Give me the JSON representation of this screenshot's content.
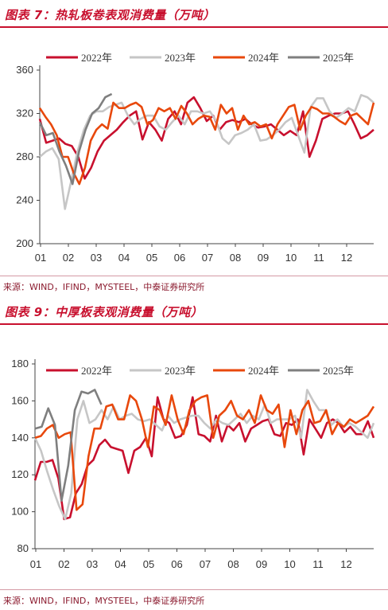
{
  "charts": [
    {
      "title": "图表 7：热轧板卷表观消费量（万吨）",
      "source": "来源：WIND，IFIND，MYSTEEL，中泰证券研究所",
      "chart_data": {
        "type": "line",
        "ylim": [
          200,
          360
        ],
        "yticks": [
          200,
          240,
          280,
          320,
          360
        ],
        "xticks": [
          "01",
          "02",
          "03",
          "04",
          "05",
          "06",
          "07",
          "08",
          "09",
          "10",
          "11",
          "12"
        ],
        "x_range": [
          1,
          52
        ],
        "grid": false,
        "legend_position": "top",
        "colors": {
          "2022": "#c8102e",
          "2023": "#c6c6c6",
          "2024": "#e8480c",
          "2025": "#7f7f7f"
        },
        "series": [
          {
            "name": "2022年",
            "color": "#c8102e",
            "values": [
              315,
              293,
              295,
              297,
              292,
              290,
              280,
              260,
              270,
              285,
              295,
              300,
              305,
              312,
              318,
              322,
              296,
              312,
              305,
              295,
              315,
              322,
              310,
              330,
              335,
              325,
              313,
              318,
              305,
              312,
              314,
              312,
              315,
              310,
              307,
              308,
              310,
              305,
              300,
              304,
              300,
              322,
              280,
              295,
              315,
              318,
              320,
              320,
              322,
              310,
              297,
              300,
              305
            ]
          },
          {
            "name": "2023年",
            "color": "#c6c6c6",
            "values": [
              280,
              285,
              288,
              278,
              232,
              258,
              285,
              305,
              318,
              322,
              322,
              326,
              328,
              330,
              318,
              310,
              315,
              318,
              318,
              308,
              305,
              312,
              318,
              310,
              322,
              322,
              320,
              322,
              313,
              297,
              292,
              300,
              302,
              305,
              310,
              295,
              296,
              300,
              305,
              312,
              316,
              300,
              284,
              326,
              334,
              334,
              322,
              316,
              320,
              325,
              322,
              337,
              335,
              330
            ]
          },
          {
            "name": "2024年",
            "color": "#e8480c",
            "values": [
              325,
              317,
              310,
              300,
              280,
              280,
              265,
              255,
              270,
              295,
              305,
              310,
              306,
              330,
              325,
              325,
              328,
              330,
              326,
              310,
              314,
              325,
              322,
              325,
              315,
              327,
              320,
              310,
              315,
              318,
              317,
              305,
              328,
              320,
              325,
              305,
              318,
              310,
              312,
              308,
              310,
              297,
              310,
              318,
              326,
              328,
              305,
              318,
              326,
              324,
              320,
              320,
              317,
              313,
              310,
              318,
              320,
              315,
              310,
              330
            ]
          },
          {
            "name": "2025年",
            "color": "#7f7f7f",
            "values": [
              312,
              300,
              302,
              285,
              272,
              255,
              285,
              305,
              320,
              325,
              335,
              338
            ]
          }
        ]
      }
    },
    {
      "title": "图表 9：中厚板表观消费量（万吨）",
      "source": "来源：WIND，IFIND，MYSTEEL，中泰证券研究所",
      "chart_data": {
        "type": "line",
        "ylim": [
          80,
          180
        ],
        "yticks": [
          80,
          100,
          120,
          140,
          160,
          180
        ],
        "xticks": [
          "01",
          "02",
          "03",
          "04",
          "05",
          "06",
          "07",
          "08",
          "09",
          "10",
          "11",
          "12"
        ],
        "x_range": [
          1,
          52
        ],
        "grid": false,
        "legend_position": "top",
        "colors": {
          "2022": "#c8102e",
          "2023": "#c6c6c6",
          "2024": "#e8480c",
          "2025": "#7f7f7f"
        },
        "series": [
          {
            "name": "2022年",
            "color": "#c8102e",
            "values": [
              117,
              127,
              127,
              128,
              118,
              96,
              97,
              110,
              115,
              125,
              128,
              136,
              139,
              135,
              134,
              133,
              121,
              133,
              135,
              140,
              130,
              162,
              150,
              148,
              140,
              141,
              147,
              162,
              142,
              141,
              138,
              152,
              138,
              147,
              144,
              148,
              138,
              145,
              147,
              149,
              150,
              142,
              141,
              148,
              147,
              150,
              131,
              150,
              145,
              140,
              148,
              150,
              148,
              143,
              146,
              142,
              142,
              149,
              140
            ]
          },
          {
            "name": "2023年",
            "color": "#c6c6c6",
            "values": [
              140,
              133,
              122,
              112,
              103,
              96,
              110,
              150,
              160,
              148,
              150,
              155,
              150,
              157,
              150,
              152,
              153,
              150,
              149,
              150,
              147,
              144,
              152,
              148,
              150,
              151,
              152,
              152,
              148,
              145,
              150,
              148,
              147,
              150,
              153,
              148,
              152,
              150,
              158,
              148,
              150,
              150,
              150,
              152,
              140,
              166,
              160,
              155,
              155,
              147,
              150,
              146,
              148,
              146,
              143,
              140,
              148
            ]
          },
          {
            "name": "2024年",
            "color": "#e8480c",
            "values": [
              140,
              141,
              145,
              147,
              140,
              142,
              143,
              101,
              104,
              130,
              145,
              145,
              157,
              158,
              150,
              150,
              163,
              160,
              150,
              135,
              157,
              155,
              147,
              163,
              150,
              142,
              155,
              160,
              162,
              163,
              140,
              152,
              155,
              160,
              152,
              150,
              155,
              148,
              163,
              155,
              153,
              158,
              135,
              155,
              142,
              155,
              160,
              148,
              149,
              155,
              142,
              148,
              146,
              150,
              148,
              150,
              152,
              157
            ]
          },
          {
            "name": "2025年",
            "color": "#7f7f7f",
            "values": [
              145,
              146,
              156,
              147,
              106,
              125,
              155,
              165,
              164,
              166,
              158
            ]
          }
        ]
      }
    }
  ]
}
